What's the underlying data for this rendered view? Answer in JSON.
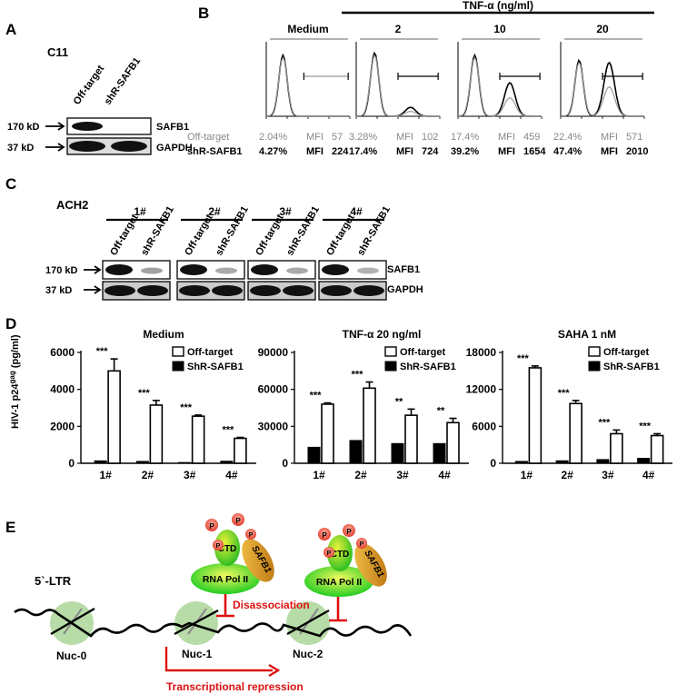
{
  "panels": {
    "A": {
      "label": "A",
      "cell_line": "C11",
      "lanes": [
        "Off-target",
        "shR-SAFB1"
      ],
      "markers": [
        "170 kD",
        "37 kD"
      ],
      "proteins": [
        "SAFB1",
        "GAPDH"
      ]
    },
    "B": {
      "label": "B",
      "tnf_header": "TNF-α  (ng/ml)",
      "histograms": [
        {
          "title": "Medium",
          "off_pct": "2.04%",
          "off_mfi": "57",
          "sh_pct": "4.27%",
          "sh_mfi": "224"
        },
        {
          "title": "2",
          "off_pct": "3.28%",
          "off_mfi": "102",
          "sh_pct": "17.4%",
          "sh_mfi": "724"
        },
        {
          "title": "10",
          "off_pct": "17.4%",
          "off_mfi": "459",
          "sh_pct": "39.2%",
          "sh_mfi": "1654"
        },
        {
          "title": "20",
          "off_pct": "22.4%",
          "off_mfi": "571",
          "sh_pct": "47.4%",
          "sh_mfi": "2010"
        }
      ],
      "row_labels": [
        "Off-target",
        "shR-SAFB1"
      ],
      "mfi_label": "MFI"
    },
    "C": {
      "label": "C",
      "cell_line": "ACH2",
      "clones": [
        "1#",
        "2#",
        "3#",
        "4#"
      ],
      "lanes": [
        "Off-target",
        "shR-SAFB1"
      ],
      "markers": [
        "170 kD",
        "37 kD"
      ],
      "proteins": [
        "SAFB1",
        "GAPDH"
      ]
    },
    "D": {
      "label": "D",
      "ylabel_main": "HIV-1 p24",
      "ylabel_sup": "gag",
      "ylabel_unit": " (pg/ml)"
    },
    "E": {
      "label": "E",
      "ltr": "5`-LTR",
      "nucs": [
        "Nuc-0",
        "Nuc-1",
        "Nuc-2"
      ],
      "pol": "RNA Pol II",
      "ctd": "CTD",
      "safb1": "SAFB1",
      "phos": "P",
      "disassociation": "Disassociation",
      "repression": "Transcriptional repression"
    }
  },
  "chart_data": [
    {
      "type": "bar",
      "title": "Medium",
      "categories": [
        "1#",
        "2#",
        "3#",
        "4#"
      ],
      "series": [
        {
          "name": "Off-target",
          "values": [
            5000,
            3150,
            2550,
            1350
          ],
          "errors": [
            650,
            250,
            60,
            50
          ]
        },
        {
          "name": "ShR-SAFB1",
          "values": [
            130,
            100,
            40,
            110
          ],
          "errors": [
            20,
            15,
            10,
            20
          ]
        }
      ],
      "significance": [
        "***",
        "***",
        "***",
        "***"
      ],
      "ylim": [
        0,
        6000
      ],
      "yticks": [
        0,
        2000,
        4000,
        6000
      ]
    },
    {
      "type": "bar",
      "title": "TNF-α 20 ng/ml",
      "categories": [
        "1#",
        "2#",
        "3#",
        "4#"
      ],
      "series": [
        {
          "name": "Off-target",
          "values": [
            48000,
            61000,
            39000,
            33000
          ],
          "errors": [
            1000,
            5000,
            5000,
            3500
          ]
        },
        {
          "name": "ShR-SAFB1",
          "values": [
            13000,
            18500,
            16000,
            16000
          ],
          "errors": [
            500,
            800,
            1000,
            1000
          ]
        }
      ],
      "significance": [
        "***",
        "***",
        "**",
        "**"
      ],
      "ylim": [
        0,
        90000
      ],
      "yticks": [
        0,
        30000,
        60000,
        90000
      ]
    },
    {
      "type": "bar",
      "title": "SAHA 1 nM",
      "categories": [
        "1#",
        "2#",
        "3#",
        "4#"
      ],
      "series": [
        {
          "name": "Off-target",
          "values": [
            15500,
            9700,
            4800,
            4500
          ],
          "errors": [
            300,
            500,
            600,
            300
          ]
        },
        {
          "name": "ShR-SAFB1",
          "values": [
            300,
            400,
            600,
            800
          ],
          "errors": [
            50,
            50,
            80,
            100
          ]
        }
      ],
      "significance": [
        "***",
        "***",
        "***",
        "***"
      ],
      "ylim": [
        0,
        18000
      ],
      "yticks": [
        0,
        6000,
        12000,
        18000
      ]
    }
  ],
  "colors": {
    "nucleosome": "#b8dca8",
    "pol_green": "#22cc22",
    "pol_yellow": "#e8f23a",
    "safb1_orange": "#d99a1e",
    "phospho_red": "#e84a3a",
    "arrow_red": "#dd1111",
    "flow_gray": "#888888"
  }
}
